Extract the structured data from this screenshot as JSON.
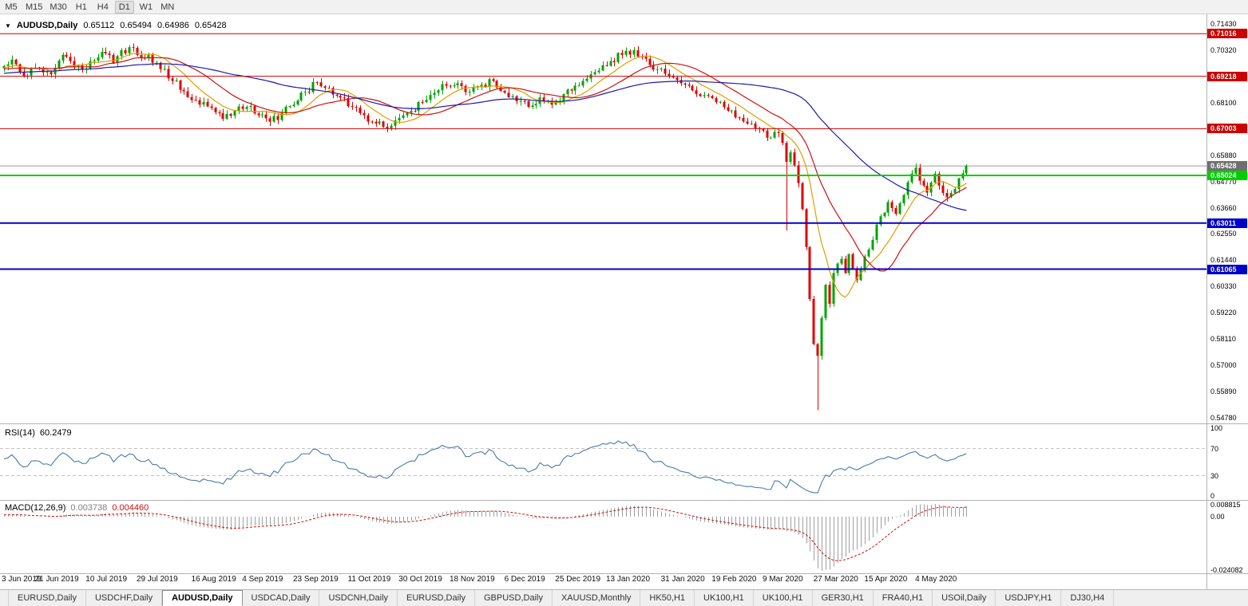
{
  "toolbar": {
    "timeframes": [
      "M5",
      "M15",
      "M30",
      "H1",
      "H4",
      "D1",
      "W1",
      "MN"
    ],
    "active_timeframe": "D1"
  },
  "header": {
    "collapse_icon": "▼",
    "symbol": "AUDUSD,Daily",
    "open": "0.65112",
    "high": "0.65494",
    "low": "0.64986",
    "close": "0.65428"
  },
  "tabs": {
    "active_index": 2,
    "items": [
      "EURUSD,Daily",
      "USDCHF,Daily",
      "AUDUSD,Daily",
      "USDCAD,Daily",
      "USDCNH,Daily",
      "EURUSD,Daily",
      "GBPUSD,Daily",
      "XAUUSD,Monthly",
      "HK50,H1",
      "UK100,H1",
      "UK100,H1",
      "GER30,H1",
      "FRA40,H1",
      "USOil,Daily",
      "USDJPY,H1",
      "DJ30,H4"
    ],
    "tab_names": [
      "EURUSD Daily",
      "USDCHF Daily",
      "AUDUSD Daily",
      "USDCAD Daily",
      "USDCNH Daily",
      "EURUSD Daily",
      "GBPUSD Daily",
      "XAUUSD Monthly",
      "HK50 H1",
      "UK100 H1",
      "UK100 H1",
      "GER30 H1",
      "FRA40 H1",
      "USOil Daily",
      "USDJPY H1",
      "DJ30 H4"
    ]
  },
  "chart_data": {
    "type": "candlestick",
    "symbol": "AUDUSD",
    "timeframe": "Daily",
    "title": "AUDUSD,Daily",
    "last_bar": {
      "open": 0.65112,
      "high": 0.65494,
      "low": 0.64986,
      "close": 0.65428
    },
    "bars_total": 247,
    "colors": {
      "up": "#00a300",
      "down": "#e00000",
      "bid_line": "#9b9b9b",
      "background": "#ffffff",
      "separator": "#b2b2b2"
    },
    "price_axis": {
      "start": 0.5478,
      "step": 0.0111,
      "count": 16,
      "hidden_ticks": [
        11,
        13
      ],
      "decimals": 5
    },
    "horizontal_levels": [
      {
        "label": "0.71016",
        "value": 0.71016,
        "color": "#cc0000",
        "width": 1
      },
      {
        "label": "0.69218",
        "value": 0.69218,
        "color": "#cc0000",
        "width": 1
      },
      {
        "label": "0.67003",
        "value": 0.67003,
        "color": "#cc0000",
        "width": 1
      },
      {
        "label": "0.65024",
        "value": 0.65024,
        "color": "#00ce00",
        "width": 2
      },
      {
        "label": "0.63011",
        "value": 0.63011,
        "color": "#0000cc",
        "width": 2
      },
      {
        "label": "0.61065",
        "value": 0.61065,
        "color": "#0000cc",
        "width": 2
      }
    ],
    "current_price": {
      "label": "0.65428",
      "value": 0.65428,
      "tag_color": "#6f6f6f"
    },
    "moving_averages": [
      {
        "type": "sma",
        "period": 10,
        "color": "#dd9f00"
      },
      {
        "type": "sma",
        "period": 21,
        "color": "#cc1111"
      },
      {
        "type": "sma",
        "period": 55,
        "color": "#1a1aae"
      }
    ],
    "price_path_anchors": [
      [
        0,
        0.6965
      ],
      [
        2,
        0.6992
      ],
      [
        4,
        0.694
      ],
      [
        6,
        0.6925
      ],
      [
        8,
        0.6958
      ],
      [
        10,
        0.6938
      ],
      [
        12,
        0.693
      ],
      [
        14,
        0.6988
      ],
      [
        16,
        0.7004
      ],
      [
        18,
        0.6962
      ],
      [
        20,
        0.6952
      ],
      [
        23,
        0.6988
      ],
      [
        26,
        0.7018
      ],
      [
        28,
        0.6978
      ],
      [
        30,
        0.7032
      ],
      [
        33,
        0.7042
      ],
      [
        35,
        0.7
      ],
      [
        37,
        0.7012
      ],
      [
        40,
        0.6952
      ],
      [
        43,
        0.6902
      ],
      [
        46,
        0.6858
      ],
      [
        50,
        0.6802
      ],
      [
        53,
        0.6788
      ],
      [
        56,
        0.6742
      ],
      [
        59,
        0.6775
      ],
      [
        62,
        0.6792
      ],
      [
        65,
        0.6757
      ],
      [
        68,
        0.673
      ],
      [
        71,
        0.6766
      ],
      [
        74,
        0.6802
      ],
      [
        77,
        0.6856
      ],
      [
        80,
        0.6896
      ],
      [
        83,
        0.6872
      ],
      [
        86,
        0.6832
      ],
      [
        89,
        0.6792
      ],
      [
        92,
        0.6757
      ],
      [
        95,
        0.6722
      ],
      [
        98,
        0.6702
      ],
      [
        101,
        0.6746
      ],
      [
        104,
        0.6776
      ],
      [
        107,
        0.6812
      ],
      [
        110,
        0.6852
      ],
      [
        113,
        0.6882
      ],
      [
        116,
        0.6892
      ],
      [
        119,
        0.6856
      ],
      [
        122,
        0.6886
      ],
      [
        125,
        0.6902
      ],
      [
        128,
        0.6852
      ],
      [
        131,
        0.6816
      ],
      [
        134,
        0.6792
      ],
      [
        137,
        0.6832
      ],
      [
        140,
        0.6802
      ],
      [
        143,
        0.6846
      ],
      [
        146,
        0.6882
      ],
      [
        149,
        0.6912
      ],
      [
        152,
        0.6946
      ],
      [
        155,
        0.6986
      ],
      [
        158,
        0.7012
      ],
      [
        161,
        0.7032
      ],
      [
        164,
        0.6996
      ],
      [
        167,
        0.6952
      ],
      [
        170,
        0.6922
      ],
      [
        173,
        0.6892
      ],
      [
        176,
        0.6862
      ],
      [
        179,
        0.6842
      ],
      [
        182,
        0.6812
      ],
      [
        185,
        0.6776
      ],
      [
        188,
        0.6746
      ],
      [
        191,
        0.6722
      ],
      [
        194,
        0.6692
      ],
      [
        196,
        0.6662
      ],
      [
        198,
        0.6682
      ],
      [
        199,
        0.664
      ],
      [
        200,
        0.656
      ],
      [
        201,
        0.66
      ],
      [
        202,
        0.6545
      ],
      [
        203,
        0.647
      ],
      [
        204,
        0.636
      ],
      [
        205,
        0.62
      ],
      [
        206,
        0.598
      ],
      [
        207,
        0.579
      ],
      [
        208,
        0.574
      ],
      [
        209,
        0.59
      ],
      [
        210,
        0.604
      ],
      [
        211,
        0.596
      ],
      [
        212,
        0.609
      ],
      [
        213,
        0.613
      ],
      [
        214,
        0.615
      ],
      [
        215,
        0.609
      ],
      [
        216,
        0.617
      ],
      [
        217,
        0.611
      ],
      [
        218,
        0.606
      ],
      [
        220,
        0.616
      ],
      [
        222,
        0.623
      ],
      [
        224,
        0.633
      ],
      [
        226,
        0.639
      ],
      [
        228,
        0.634
      ],
      [
        230,
        0.642
      ],
      [
        232,
        0.651
      ],
      [
        233,
        0.6535
      ],
      [
        234,
        0.648
      ],
      [
        236,
        0.643
      ],
      [
        238,
        0.651
      ],
      [
        239,
        0.646
      ],
      [
        241,
        0.641
      ],
      [
        243,
        0.6445
      ],
      [
        244,
        0.649
      ],
      [
        245,
        0.65112
      ],
      [
        246,
        0.65428
      ]
    ],
    "special_bars": {
      "200": {
        "low": 0.627
      },
      "208": {
        "low": 0.551
      },
      "246": {
        "open": 0.65112,
        "high": 0.65494,
        "low": 0.64986,
        "close": 0.65428
      }
    },
    "time_axis": [
      {
        "label": "3 Jun 2019",
        "day": 0
      },
      {
        "label": "21 Jun 2019",
        "day": 14
      },
      {
        "label": "10 Jul 2019",
        "day": 27
      },
      {
        "label": "29 Jul 2019",
        "day": 40
      },
      {
        "label": "16 Aug 2019",
        "day": 54
      },
      {
        "label": "4 Sep 2019",
        "day": 67
      },
      {
        "label": "23 Sep 2019",
        "day": 80
      },
      {
        "label": "11 Oct 2019",
        "day": 94
      },
      {
        "label": "30 Oct 2019",
        "day": 107
      },
      {
        "label": "18 Nov 2019",
        "day": 120
      },
      {
        "label": "6 Dec 2019",
        "day": 134
      },
      {
        "label": "25 Dec 2019",
        "day": 147
      },
      {
        "label": "13 Jan 2020",
        "day": 160
      },
      {
        "label": "31 Jan 2020",
        "day": 174
      },
      {
        "label": "19 Feb 2020",
        "day": 187
      },
      {
        "label": "9 Mar 2020",
        "day": 200
      },
      {
        "label": "27 Mar 2020",
        "day": 213
      },
      {
        "label": "15 Apr 2020",
        "day": 226
      },
      {
        "label": "4 May 2020",
        "day": 239
      }
    ],
    "indicators": {
      "rsi": {
        "name": "RSI(14)",
        "display_value": "60.2479",
        "period": 14,
        "color": "#4a7aa8",
        "levels": [
          70,
          30
        ],
        "axis_ticks": [
          100,
          70,
          30,
          0
        ]
      },
      "macd": {
        "name": "MACD(12,26,9)",
        "value_main": "0.003738",
        "value_signal": "0.004460",
        "fast": 12,
        "slow": 26,
        "signal": 9,
        "histogram_color": "#9f9f9f",
        "signal_color": "#cc1111",
        "axis_ticks": [
          "0.008815",
          "0.00",
          "-0.024082"
        ]
      }
    }
  }
}
